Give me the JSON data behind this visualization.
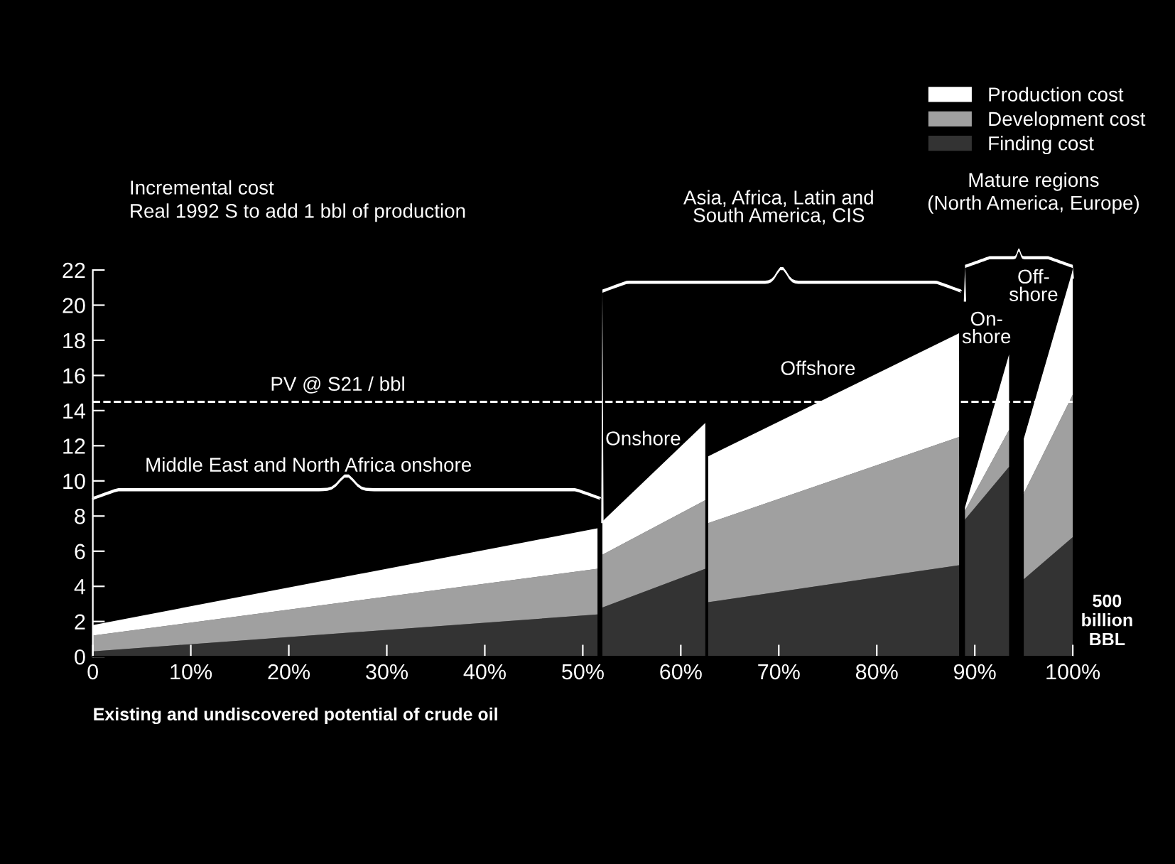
{
  "chart_data": {
    "type": "area",
    "stacked": true,
    "title": "Incremental cost",
    "subtitle": "Real 1992 S to add 1 bbl of production",
    "xlabel": "Existing and undiscovered potential of crude oil",
    "x": [
      0,
      51.5,
      51.75,
      52,
      62.5,
      62.65,
      62.8,
      88.4,
      88.7,
      89,
      93.5,
      94.2,
      95,
      100
    ],
    "series": [
      {
        "name": "Finding cost",
        "color": "#333333",
        "values": [
          0.3,
          2.4,
          null,
          2.8,
          5.0,
          null,
          3.1,
          5.2,
          null,
          7.8,
          10.8,
          null,
          4.4,
          6.8
        ]
      },
      {
        "name": "Development cost",
        "color": "#a0a0a0",
        "values": [
          0.9,
          2.6,
          null,
          3.0,
          3.9,
          null,
          4.5,
          7.3,
          null,
          0.5,
          2.1,
          null,
          4.9,
          8.1
        ]
      },
      {
        "name": "Production cost",
        "color": "#ffffff",
        "values": [
          0.6,
          2.3,
          null,
          1.9,
          4.4,
          null,
          3.8,
          5.9,
          null,
          0.2,
          4.3,
          null,
          3.1,
          7.1
        ]
      }
    ],
    "xlim": [
      0,
      100
    ],
    "xticks": [
      0,
      {
        "value": 10,
        "label": "10%"
      },
      {
        "value": 20,
        "label": "20%"
      },
      {
        "value": 30,
        "label": "30%"
      },
      {
        "value": 40,
        "label": "40%"
      },
      {
        "value": 50,
        "label": "50%"
      },
      {
        "value": 60,
        "label": "60%"
      },
      {
        "value": 70,
        "label": "70%"
      },
      {
        "value": 80,
        "label": "80%"
      },
      {
        "value": 90,
        "label": "90%"
      },
      {
        "value": 100,
        "label": "100%"
      }
    ],
    "ylim": [
      0,
      22
    ],
    "yticks": [
      0,
      2,
      4,
      6,
      8,
      10,
      12,
      14,
      16,
      18,
      20,
      22
    ],
    "ref_lines": [
      {
        "axis": "y",
        "value": 14.5,
        "label": "PV @ S21 / bbl",
        "color": "#ffffff",
        "line_style": "dashed"
      }
    ],
    "annotations": [
      "Middle East and North Africa onshore",
      "Asia, Africa, Latin and\nSouth America, CIS",
      "Mature regions",
      "(North America, Europe)",
      "Onshore",
      "Offshore",
      "On-\nshore",
      "Off-\nshore",
      "500\nbillion\nBBL"
    ],
    "legend": "top right",
    "grid": false
  }
}
